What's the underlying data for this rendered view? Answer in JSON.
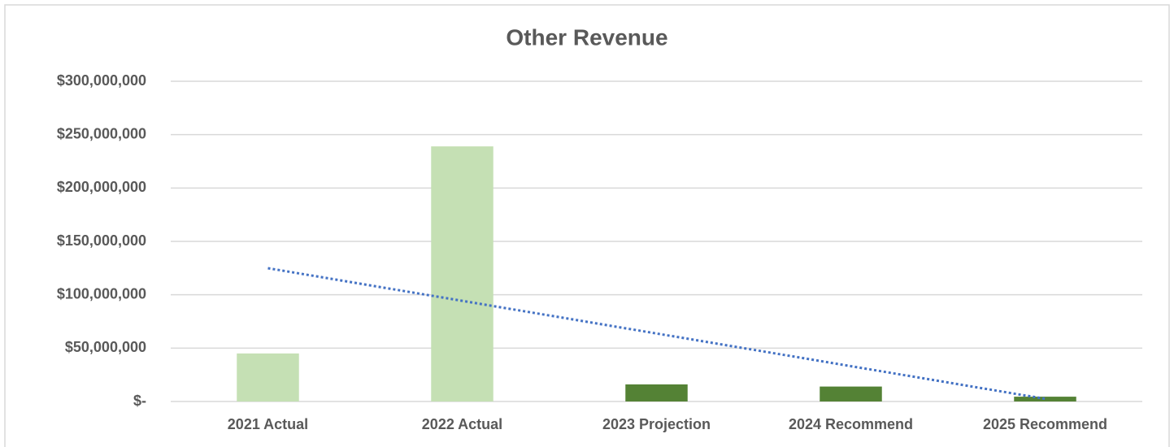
{
  "chart_data": {
    "type": "bar",
    "title": "Other Revenue",
    "categories": [
      "2021 Actual",
      "2022 Actual",
      "2023 Projection",
      "2024 Recommend",
      "2025 Recommend"
    ],
    "values": [
      45000000,
      239000000,
      16000000,
      14000000,
      4500000
    ],
    "colors": [
      "#c5e0b4",
      "#c5e0b4",
      "#548235",
      "#548235",
      "#548235"
    ],
    "ylim": [
      0,
      300000000
    ],
    "yticks": [
      {
        "value": 0,
        "label": "$-"
      },
      {
        "value": 50000000,
        "label": "$50,000,000"
      },
      {
        "value": 100000000,
        "label": "$100,000,000"
      },
      {
        "value": 150000000,
        "label": "$150,000,000"
      },
      {
        "value": 200000000,
        "label": "$200,000,000"
      },
      {
        "value": 250000000,
        "label": "$250,000,000"
      },
      {
        "value": 300000000,
        "label": "$300,000,000"
      }
    ],
    "grid": true,
    "trendline": "linear",
    "trendline_color": "#4472c4"
  }
}
